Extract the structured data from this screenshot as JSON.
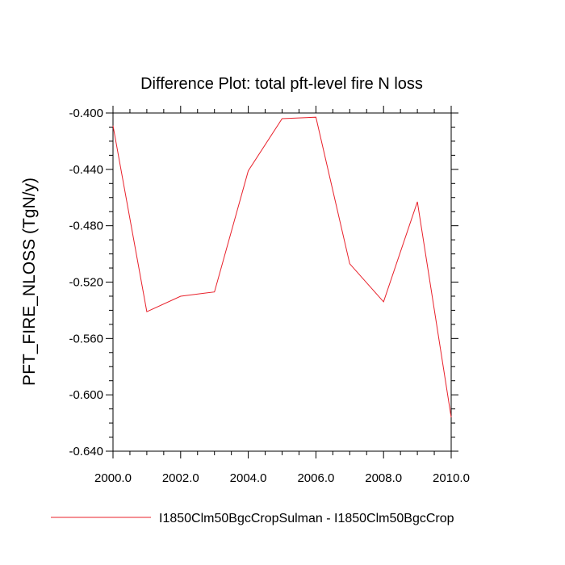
{
  "chart_data": {
    "type": "line",
    "title": "Difference Plot: total pft-level fire N loss",
    "xlabel": "",
    "ylabel": "PFT_FIRE_NLOSS  (TgN/y)",
    "xlim": [
      2000,
      2010
    ],
    "ylim": [
      -0.64,
      -0.4
    ],
    "x_ticks": [
      2000,
      2002,
      2004,
      2006,
      2008,
      2010
    ],
    "x_tick_labels": [
      "2000.0",
      "2002.0",
      "2004.0",
      "2006.0",
      "2008.0",
      "2010.0"
    ],
    "y_ticks": [
      -0.4,
      -0.44,
      -0.48,
      -0.52,
      -0.56,
      -0.6,
      -0.64
    ],
    "y_tick_labels": [
      "-0.400",
      "-0.440",
      "-0.480",
      "-0.520",
      "-0.560",
      "-0.600",
      "-0.640"
    ],
    "grid": false,
    "legend_position": "bottom",
    "x": [
      2000,
      2001,
      2002,
      2003,
      2004,
      2005,
      2006,
      2007,
      2008,
      2009,
      2010
    ],
    "series": [
      {
        "name": "I1850Clm50BgcCropSulman - I1850Clm50BgcCrop",
        "color": "#e8202a",
        "values": [
          -0.409,
          -0.541,
          -0.53,
          -0.527,
          -0.441,
          -0.404,
          -0.403,
          -0.507,
          -0.534,
          -0.463,
          -0.616
        ]
      }
    ]
  }
}
